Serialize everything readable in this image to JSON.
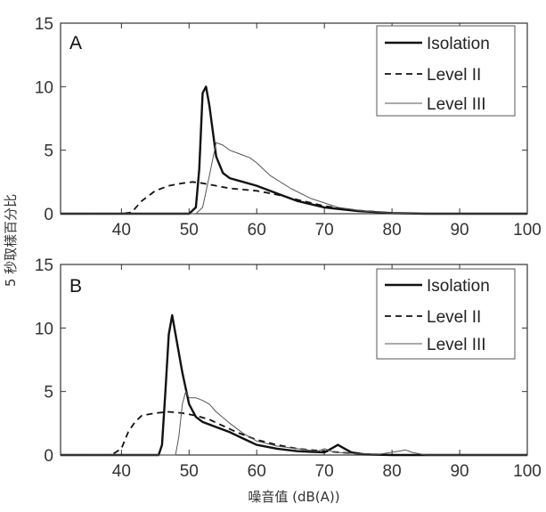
{
  "chart_data": [
    {
      "type": "line",
      "panel": "A",
      "xlim": [
        31,
        100
      ],
      "ylim": [
        0,
        15
      ],
      "xticks": [
        40,
        50,
        60,
        70,
        80,
        90,
        100
      ],
      "yticks": [
        0,
        5,
        10,
        15
      ],
      "legend_position": "top-right",
      "series": [
        {
          "name": "Isolation",
          "style": "solid-thick",
          "x": [
            31,
            48,
            50,
            51,
            51.5,
            52,
            52.5,
            53,
            54,
            55,
            56,
            58,
            60,
            63,
            66,
            70,
            75,
            80,
            85,
            100
          ],
          "y": [
            0,
            0,
            0,
            0.5,
            3.5,
            9.5,
            10,
            8.5,
            4.5,
            3.2,
            2.8,
            2.5,
            2.2,
            1.6,
            1.0,
            0.5,
            0.2,
            0.05,
            0,
            0
          ]
        },
        {
          "name": "Level II",
          "style": "dashed",
          "x": [
            31,
            40,
            41.5,
            43,
            45,
            47,
            49,
            50.5,
            52,
            54,
            56,
            58,
            60,
            63,
            66,
            70,
            75,
            80,
            85,
            100
          ],
          "y": [
            0,
            0,
            0.1,
            1.0,
            1.8,
            2.2,
            2.4,
            2.5,
            2.4,
            2.2,
            2.0,
            1.9,
            1.8,
            1.5,
            1.1,
            0.6,
            0.25,
            0.05,
            0,
            0
          ]
        },
        {
          "name": "Level III",
          "style": "solid-thin",
          "x": [
            31,
            51,
            52,
            53,
            54,
            55,
            56,
            57,
            58,
            59,
            60,
            62,
            65,
            68,
            72,
            76,
            80,
            85,
            100
          ],
          "y": [
            0,
            0,
            0.5,
            3.0,
            5.6,
            5.4,
            5.0,
            4.8,
            4.6,
            4.4,
            4.0,
            3.0,
            2.0,
            1.2,
            0.5,
            0.2,
            0.05,
            0,
            0
          ]
        }
      ]
    },
    {
      "type": "line",
      "panel": "B",
      "xlim": [
        31,
        100
      ],
      "ylim": [
        0,
        15
      ],
      "xticks": [
        40,
        50,
        60,
        70,
        80,
        90,
        100
      ],
      "yticks": [
        0,
        5,
        10,
        15
      ],
      "legend_position": "top-right",
      "series": [
        {
          "name": "Isolation",
          "style": "solid-thick",
          "x": [
            31,
            45.5,
            46,
            46.5,
            47,
            47.5,
            48,
            49,
            50,
            51,
            52,
            54,
            56,
            58,
            60,
            63,
            66,
            68,
            70,
            71,
            72,
            73,
            74,
            76,
            80,
            85,
            100
          ],
          "y": [
            0,
            0,
            0.8,
            5.0,
            9.5,
            11.0,
            9.5,
            6.5,
            4.0,
            3.0,
            2.6,
            2.2,
            1.8,
            1.3,
            0.8,
            0.5,
            0.3,
            0.25,
            0.2,
            0.5,
            0.8,
            0.5,
            0.2,
            0.05,
            0,
            0,
            0
          ]
        },
        {
          "name": "Level II",
          "style": "dashed",
          "x": [
            31,
            38.5,
            40,
            41,
            42,
            43,
            45,
            47,
            49,
            51,
            53,
            55,
            57,
            60,
            63,
            66,
            70,
            75,
            80,
            100
          ],
          "y": [
            0,
            0,
            0.5,
            1.8,
            2.6,
            3.1,
            3.3,
            3.4,
            3.3,
            3.1,
            2.8,
            2.3,
            1.8,
            1.2,
            0.8,
            0.5,
            0.3,
            0.1,
            0,
            0
          ]
        },
        {
          "name": "Level III",
          "style": "solid-thin",
          "x": [
            31,
            48,
            48.5,
            49,
            49.5,
            50,
            51,
            52,
            53,
            54,
            56,
            58,
            60,
            63,
            66,
            69,
            70,
            71,
            72,
            75,
            78,
            81,
            82,
            83,
            85,
            100
          ],
          "y": [
            0,
            0,
            1.5,
            4.0,
            5.0,
            4.5,
            4.5,
            4.3,
            4.0,
            3.4,
            2.5,
            1.7,
            1.1,
            0.7,
            0.5,
            0.3,
            0.5,
            0.3,
            0.2,
            0.1,
            0.05,
            0.3,
            0.4,
            0.2,
            0,
            0
          ]
        }
      ]
    }
  ],
  "labels": {
    "panel_a": "A",
    "panel_b": "B",
    "legend_a": [
      "Isolation",
      "Level II",
      "Level III"
    ],
    "legend_b": [
      "Isolation",
      "Level II",
      "Level III"
    ],
    "ylabel": "5 秒取樣百分比",
    "xlabel": "噪音值 (dB(A))"
  }
}
